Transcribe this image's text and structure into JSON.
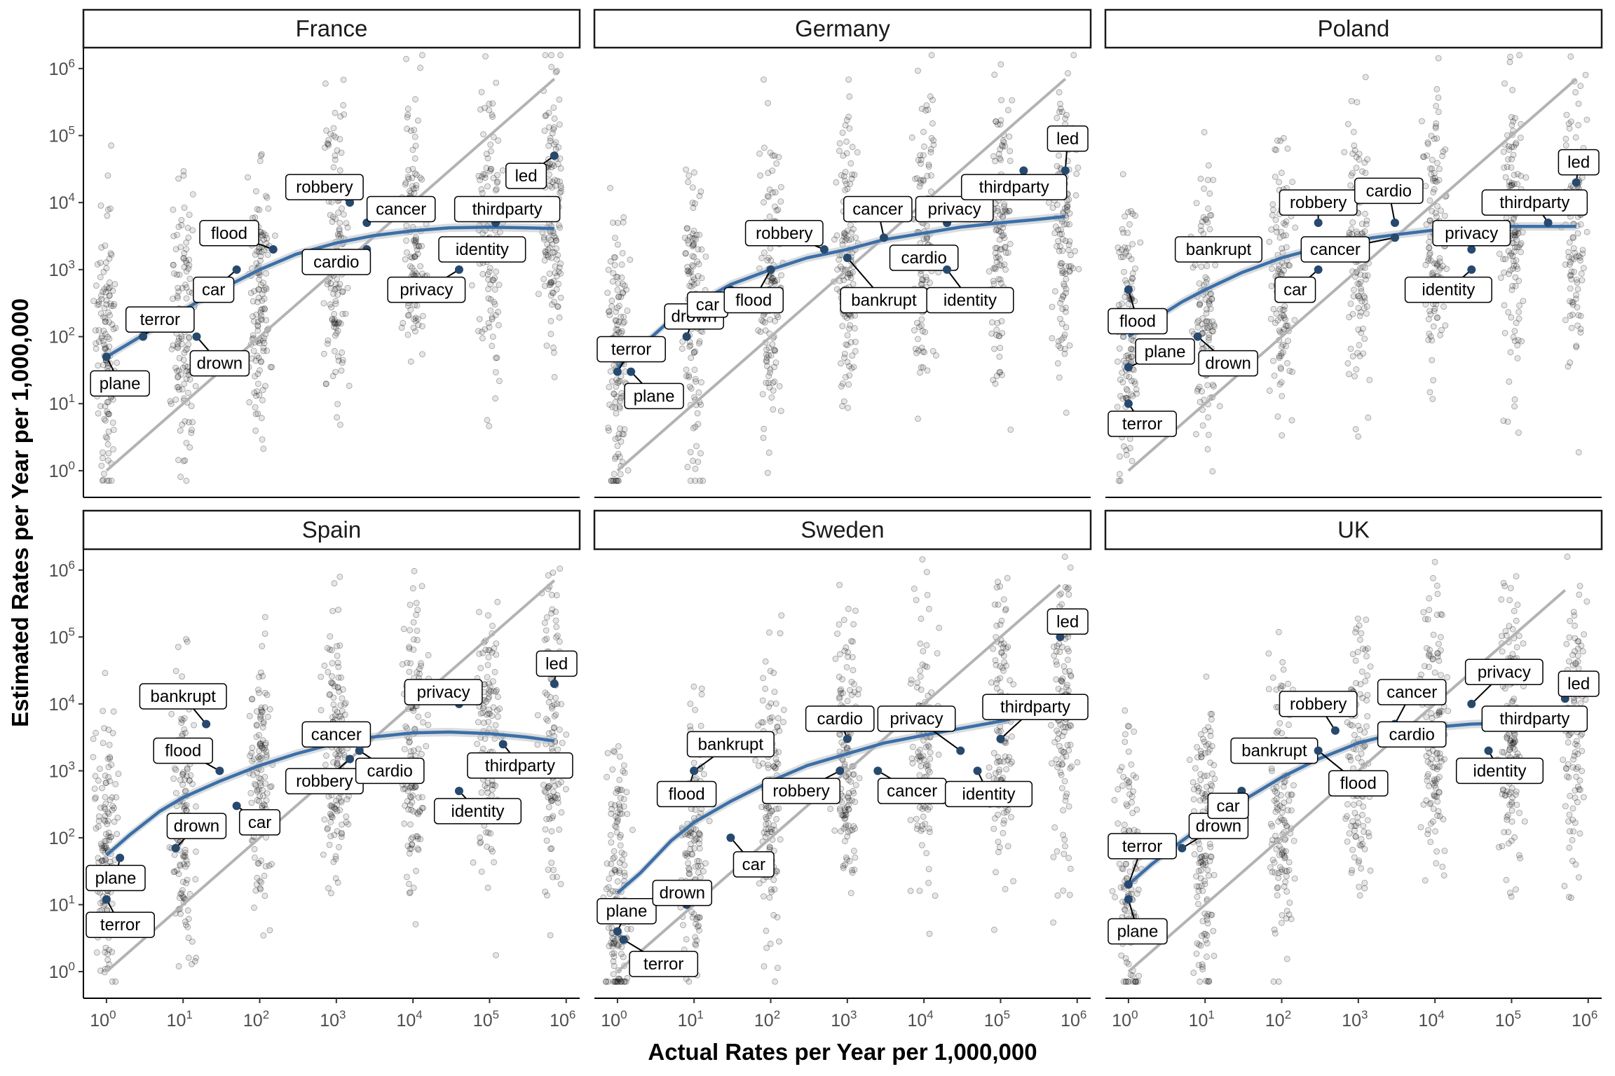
{
  "chart_data": {
    "type": "scatter",
    "xlabel": "Actual Rates per Year per 1,000,000",
    "ylabel": "Estimated Rates per Year per 1,000,000",
    "xscale": "log10",
    "yscale": "log10",
    "xlim": [
      0.5,
      1500000
    ],
    "ylim": [
      0.4,
      2000000
    ],
    "tick_base": "10",
    "x_tick_exponents": [
      "0",
      "1",
      "2",
      "3",
      "4",
      "5",
      "6"
    ],
    "y_tick_exponents": [
      "0",
      "1",
      "2",
      "3",
      "4",
      "5",
      "6"
    ],
    "reference_line": "y = x",
    "colors": {
      "points": "#000000",
      "highlight": "#27496d",
      "smooth": "#3b6fa8",
      "reference": "#b3b3b3",
      "ribbon": "#b4b9bf"
    },
    "facets": [
      {
        "name": "France",
        "points": [
          {
            "label": "plane",
            "x": 1,
            "y": 50,
            "lx": 1.5,
            "ly": 20
          },
          {
            "label": "terror",
            "x": 3,
            "y": 100,
            "lx": 5,
            "ly": 180
          },
          {
            "label": "drown",
            "x": 15,
            "y": 100,
            "lx": 30,
            "ly": 40
          },
          {
            "label": "car",
            "x": 50,
            "y": 1000,
            "lx": 25,
            "ly": 500
          },
          {
            "label": "flood",
            "x": 150,
            "y": 2000,
            "lx": 40,
            "ly": 3500
          },
          {
            "label": "robbery",
            "x": 1500,
            "y": 10000,
            "lx": 700,
            "ly": 17000
          },
          {
            "label": "cancer",
            "x": 2500,
            "y": 5000,
            "lx": 7000,
            "ly": 8000
          },
          {
            "label": "cardio",
            "x": 2500,
            "y": 2000,
            "lx": 1000,
            "ly": 1300
          },
          {
            "label": "privacy",
            "x": 40000,
            "y": 1000,
            "lx": 15000,
            "ly": 500
          },
          {
            "label": "identity",
            "x": 40000,
            "y": 2000,
            "lx": 80000,
            "ly": 2000
          },
          {
            "label": "thirdparty",
            "x": 120000,
            "y": 5000,
            "lx": 170000,
            "ly": 8000
          },
          {
            "label": "led",
            "x": 700000,
            "y": 50000,
            "lx": 300000,
            "ly": 25000
          }
        ],
        "smooth": [
          [
            1,
            50
          ],
          [
            2,
            80
          ],
          [
            5,
            150
          ],
          [
            10,
            250
          ],
          [
            30,
            500
          ],
          [
            100,
            1000
          ],
          [
            300,
            1700
          ],
          [
            1000,
            2500
          ],
          [
            3000,
            3200
          ],
          [
            10000,
            3800
          ],
          [
            30000,
            4200
          ],
          [
            100000,
            4300
          ],
          [
            300000,
            4200
          ],
          [
            700000,
            4100
          ]
        ]
      },
      {
        "name": "Germany",
        "points": [
          {
            "label": "terror",
            "x": 1,
            "y": 30,
            "lx": 1,
            "ly": 65
          },
          {
            "label": "plane",
            "x": 1.5,
            "y": 30,
            "lx": 3,
            "ly": 13
          },
          {
            "label": "drown",
            "x": 8,
            "y": 100,
            "lx": 10,
            "ly": 200
          },
          {
            "label": "car",
            "x": 30,
            "y": 500,
            "lx": 15,
            "ly": 300
          },
          {
            "label": "flood",
            "x": 100,
            "y": 1000,
            "lx": 60,
            "ly": 350
          },
          {
            "label": "robbery",
            "x": 500,
            "y": 2000,
            "lx": 150,
            "ly": 3500
          },
          {
            "label": "bankrupt",
            "x": 1000,
            "y": 1500,
            "lx": 3000,
            "ly": 350
          },
          {
            "label": "cancer",
            "x": 3000,
            "y": 3000,
            "lx": 2500,
            "ly": 8000
          },
          {
            "label": "cardio",
            "x": 5000,
            "y": 1500,
            "lx": 10000,
            "ly": 1500
          },
          {
            "label": "privacy",
            "x": 20000,
            "y": 5000,
            "lx": 25000,
            "ly": 8000
          },
          {
            "label": "identity",
            "x": 20000,
            "y": 1000,
            "lx": 40000,
            "ly": 350
          },
          {
            "label": "thirdparty",
            "x": 200000,
            "y": 30000,
            "lx": 150000,
            "ly": 17000
          },
          {
            "label": "led",
            "x": 700000,
            "y": 30000,
            "lx": 900000,
            "ly": 90000
          }
        ],
        "smooth": [
          [
            1,
            35
          ],
          [
            2,
            70
          ],
          [
            5,
            180
          ],
          [
            10,
            300
          ],
          [
            30,
            600
          ],
          [
            100,
            1000
          ],
          [
            300,
            1500
          ],
          [
            1000,
            2000
          ],
          [
            3000,
            2800
          ],
          [
            10000,
            3500
          ],
          [
            30000,
            4300
          ],
          [
            100000,
            5000
          ],
          [
            300000,
            5600
          ],
          [
            700000,
            6200
          ]
        ]
      },
      {
        "name": "Poland",
        "points": [
          {
            "label": "terror",
            "x": 1,
            "y": 10,
            "lx": 1,
            "ly": 5
          },
          {
            "label": "plane",
            "x": 1,
            "y": 35,
            "lx": 3,
            "ly": 60
          },
          {
            "label": "flood",
            "x": 1,
            "y": 500,
            "lx": 1,
            "ly": 170
          },
          {
            "label": "drown",
            "x": 8,
            "y": 100,
            "lx": 20,
            "ly": 40
          },
          {
            "label": "bankrupt",
            "x": 30,
            "y": 1500,
            "lx": 15,
            "ly": 2000
          },
          {
            "label": "car",
            "x": 300,
            "y": 1000,
            "lx": 150,
            "ly": 500
          },
          {
            "label": "robbery",
            "x": 300,
            "y": 5000,
            "lx": 300,
            "ly": 10000
          },
          {
            "label": "cancer",
            "x": 3000,
            "y": 3000,
            "lx": 500,
            "ly": 2000
          },
          {
            "label": "cardio",
            "x": 3000,
            "y": 5000,
            "lx": 2500,
            "ly": 15000
          },
          {
            "label": "identity",
            "x": 30000,
            "y": 1000,
            "lx": 15000,
            "ly": 500
          },
          {
            "label": "privacy",
            "x": 30000,
            "y": 2000,
            "lx": 30000,
            "ly": 3500
          },
          {
            "label": "thirdparty",
            "x": 300000,
            "y": 5000,
            "lx": 200000,
            "ly": 10000
          },
          {
            "label": "led",
            "x": 700000,
            "y": 20000,
            "lx": 900000,
            "ly": 40000
          }
        ],
        "smooth": [
          [
            1,
            100
          ],
          [
            2,
            170
          ],
          [
            5,
            330
          ],
          [
            10,
            500
          ],
          [
            30,
            900
          ],
          [
            100,
            1500
          ],
          [
            300,
            2100
          ],
          [
            1000,
            2800
          ],
          [
            3000,
            3300
          ],
          [
            10000,
            3900
          ],
          [
            30000,
            4200
          ],
          [
            100000,
            4400
          ],
          [
            300000,
            4400
          ],
          [
            700000,
            4400
          ]
        ]
      },
      {
        "name": "Spain",
        "points": [
          {
            "label": "terror",
            "x": 1,
            "y": 12,
            "lx": 1,
            "ly": 5
          },
          {
            "label": "plane",
            "x": 1.5,
            "y": 50,
            "lx": 1,
            "ly": 25
          },
          {
            "label": "drown",
            "x": 8,
            "y": 70,
            "lx": 15,
            "ly": 150
          },
          {
            "label": "bankrupt",
            "x": 20,
            "y": 5000,
            "lx": 10,
            "ly": 13000
          },
          {
            "label": "flood",
            "x": 30,
            "y": 1000,
            "lx": 10,
            "ly": 2000
          },
          {
            "label": "car",
            "x": 50,
            "y": 300,
            "lx": 100,
            "ly": 170
          },
          {
            "label": "robbery",
            "x": 1500,
            "y": 1500,
            "lx": 700,
            "ly": 700
          },
          {
            "label": "cancer",
            "x": 2000,
            "y": 3000,
            "lx": 1000,
            "ly": 3500
          },
          {
            "label": "cardio",
            "x": 2000,
            "y": 2000,
            "lx": 5000,
            "ly": 1000
          },
          {
            "label": "privacy",
            "x": 40000,
            "y": 10000,
            "lx": 25000,
            "ly": 15000
          },
          {
            "label": "identity",
            "x": 40000,
            "y": 500,
            "lx": 70000,
            "ly": 250
          },
          {
            "label": "thirdparty",
            "x": 150000,
            "y": 2500,
            "lx": 250000,
            "ly": 1200
          },
          {
            "label": "led",
            "x": 700000,
            "y": 20000,
            "lx": 900000,
            "ly": 40000
          }
        ],
        "smooth": [
          [
            1,
            55
          ],
          [
            2,
            110
          ],
          [
            5,
            250
          ],
          [
            10,
            400
          ],
          [
            30,
            700
          ],
          [
            100,
            1200
          ],
          [
            300,
            1800
          ],
          [
            1000,
            2600
          ],
          [
            3000,
            3200
          ],
          [
            10000,
            3700
          ],
          [
            30000,
            3800
          ],
          [
            100000,
            3600
          ],
          [
            300000,
            3200
          ],
          [
            700000,
            2800
          ]
        ]
      },
      {
        "name": "Sweden",
        "points": [
          {
            "label": "plane",
            "x": 1,
            "y": 4,
            "lx": 1,
            "ly": 8
          },
          {
            "label": "terror",
            "x": 1.2,
            "y": 3,
            "lx": 4,
            "ly": 1.3
          },
          {
            "label": "drown",
            "x": 8,
            "y": 10,
            "lx": 7,
            "ly": 15
          },
          {
            "label": "car",
            "x": 30,
            "y": 100,
            "lx": 60,
            "ly": 40
          },
          {
            "label": "flood",
            "x": 10,
            "y": 1000,
            "lx": 8,
            "ly": 450
          },
          {
            "label": "bankrupt",
            "x": 10,
            "y": 1000,
            "lx": 30,
            "ly": 2500
          },
          {
            "label": "robbery",
            "x": 800,
            "y": 1000,
            "lx": 250,
            "ly": 500
          },
          {
            "label": "cardio",
            "x": 1000,
            "y": 3000,
            "lx": 800,
            "ly": 6000
          },
          {
            "label": "cancer",
            "x": 2500,
            "y": 1000,
            "lx": 7000,
            "ly": 500
          },
          {
            "label": "privacy",
            "x": 30000,
            "y": 2000,
            "lx": 8000,
            "ly": 6000
          },
          {
            "label": "identity",
            "x": 50000,
            "y": 1000,
            "lx": 70000,
            "ly": 450
          },
          {
            "label": "thirdparty",
            "x": 100000,
            "y": 3000,
            "lx": 300000,
            "ly": 9000
          },
          {
            "label": "led",
            "x": 600000,
            "y": 100000,
            "lx": 800000,
            "ly": 170000
          }
        ],
        "smooth": [
          [
            1,
            15
          ],
          [
            2,
            30
          ],
          [
            5,
            90
          ],
          [
            10,
            170
          ],
          [
            30,
            350
          ],
          [
            100,
            700
          ],
          [
            300,
            1200
          ],
          [
            1000,
            1800
          ],
          [
            3000,
            2600
          ],
          [
            10000,
            3400
          ],
          [
            30000,
            4300
          ],
          [
            100000,
            5500
          ],
          [
            300000,
            7500
          ],
          [
            600000,
            10000
          ]
        ]
      },
      {
        "name": "UK",
        "points": [
          {
            "label": "terror",
            "x": 1,
            "y": 20,
            "lx": 1,
            "ly": 75
          },
          {
            "label": "plane",
            "x": 1,
            "y": 12,
            "lx": 1,
            "ly": 4
          },
          {
            "label": "drown",
            "x": 5,
            "y": 70,
            "lx": 15,
            "ly": 150
          },
          {
            "label": "car",
            "x": 30,
            "y": 500,
            "lx": 20,
            "ly": 300
          },
          {
            "label": "bankrupt",
            "x": 200,
            "y": 2000,
            "lx": 80,
            "ly": 2000
          },
          {
            "label": "flood",
            "x": 300,
            "y": 2000,
            "lx": 1000,
            "ly": 650
          },
          {
            "label": "robbery",
            "x": 500,
            "y": 4000,
            "lx": 300,
            "ly": 10000
          },
          {
            "label": "cancer",
            "x": 3000,
            "y": 5000,
            "lx": 5000,
            "ly": 15000
          },
          {
            "label": "cardio",
            "x": 3000,
            "y": 5000,
            "lx": 5000,
            "ly": 3500
          },
          {
            "label": "privacy",
            "x": 30000,
            "y": 10000,
            "lx": 80000,
            "ly": 30000
          },
          {
            "label": "identity",
            "x": 50000,
            "y": 2000,
            "lx": 70000,
            "ly": 1000
          },
          {
            "label": "thirdparty",
            "x": 70000,
            "y": 8000,
            "lx": 200000,
            "ly": 6000
          },
          {
            "label": "led",
            "x": 500000,
            "y": 12000,
            "lx": 900000,
            "ly": 20000
          }
        ],
        "smooth": [
          [
            1,
            20
          ],
          [
            2,
            40
          ],
          [
            5,
            90
          ],
          [
            10,
            160
          ],
          [
            30,
            350
          ],
          [
            100,
            800
          ],
          [
            300,
            1500
          ],
          [
            1000,
            2600
          ],
          [
            3000,
            3600
          ],
          [
            10000,
            4500
          ],
          [
            30000,
            5000
          ],
          [
            100000,
            5200
          ],
          [
            300000,
            5300
          ],
          [
            500000,
            5300
          ]
        ]
      }
    ]
  }
}
